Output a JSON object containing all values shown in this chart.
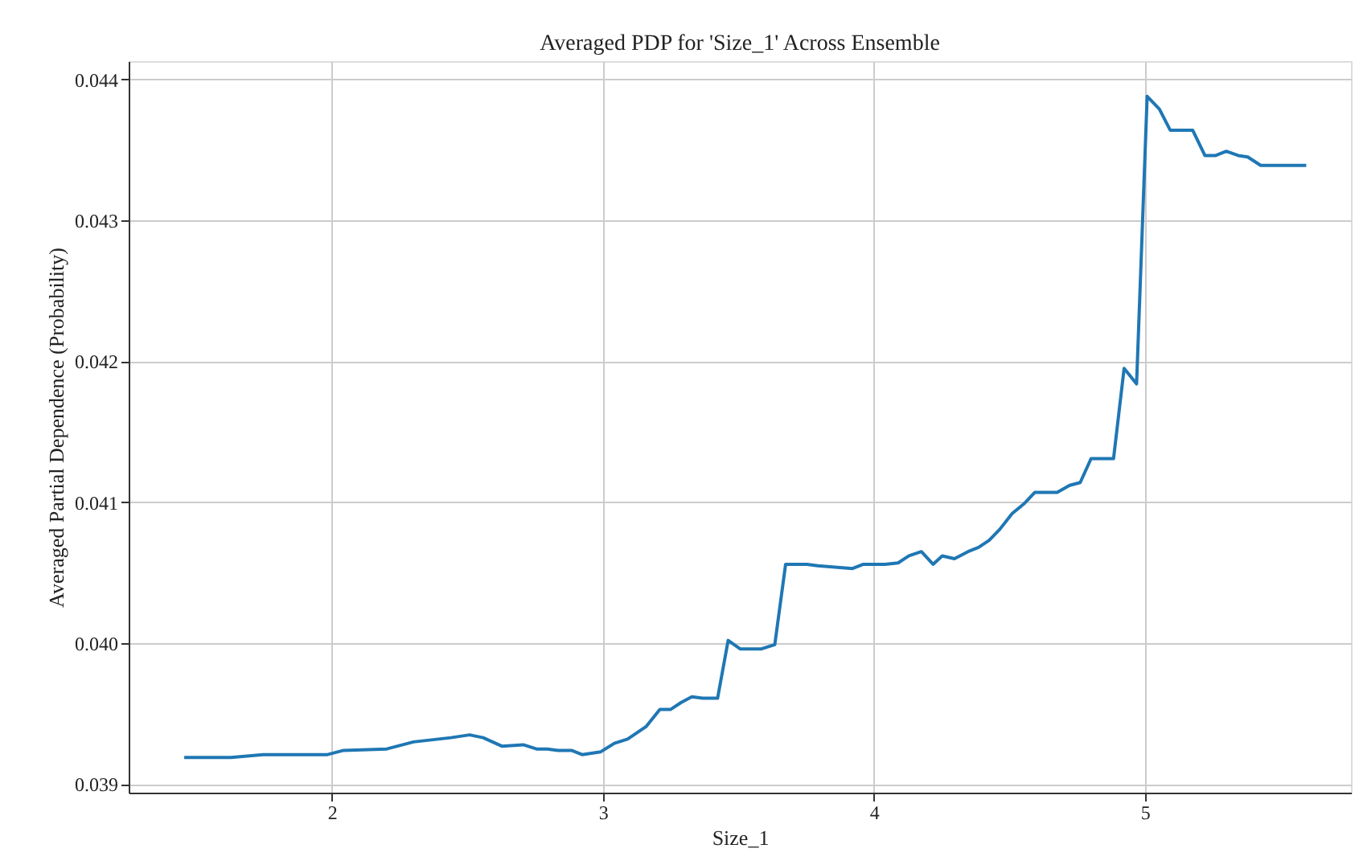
{
  "chart_data": {
    "type": "line",
    "title": "Averaged PDP for 'Size_1' Across Ensemble",
    "xlabel": "Size_1",
    "ylabel": "Averaged Partial Dependence (Probability)",
    "xlim": [
      1.25,
      5.76
    ],
    "xticks": [
      2,
      3,
      4,
      5
    ],
    "ylim": [
      0.03894,
      0.04413
    ],
    "yticks": [
      0.039,
      {
        "value": 0.04,
        "label": "0.040"
      },
      0.041,
      0.042,
      0.043,
      0.044
    ],
    "grid": true,
    "marker": "none",
    "line_style": "solid",
    "series": [
      {
        "color": "#1f77b4",
        "x": [
          1.455,
          1.627,
          1.746,
          1.845,
          1.984,
          2.043,
          2.202,
          2.301,
          2.439,
          2.508,
          2.558,
          2.627,
          2.706,
          2.755,
          2.795,
          2.834,
          2.884,
          2.923,
          2.992,
          3.042,
          3.091,
          3.16,
          3.21,
          3.249,
          3.289,
          3.328,
          3.368,
          3.423,
          3.462,
          3.506,
          3.585,
          3.634,
          3.674,
          3.753,
          3.792,
          3.921,
          3.961,
          4.04,
          4.089,
          4.129,
          4.175,
          4.218,
          4.252,
          4.297,
          4.347,
          4.386,
          4.425,
          4.465,
          4.51,
          4.554,
          4.593,
          4.676,
          4.722,
          4.761,
          4.801,
          4.884,
          4.923,
          4.969,
          5.008,
          5.053,
          5.093,
          5.176,
          5.221,
          5.261,
          5.3,
          5.344,
          5.379,
          5.427,
          5.595
        ],
        "values": [
          0.03919,
          0.03919,
          0.03921,
          0.03921,
          0.03921,
          0.03924,
          0.03925,
          0.0393,
          0.03933,
          0.03935,
          0.03933,
          0.03927,
          0.03928,
          0.03925,
          0.03925,
          0.03924,
          0.03924,
          0.03921,
          0.03923,
          0.03929,
          0.03932,
          0.03941,
          0.03953,
          0.03953,
          0.03958,
          0.03962,
          0.03961,
          0.03961,
          0.04002,
          0.03996,
          0.03996,
          0.03999,
          0.04056,
          0.04056,
          0.04055,
          0.04053,
          0.04056,
          0.04056,
          0.04057,
          0.04062,
          0.04065,
          0.04056,
          0.04062,
          0.0406,
          0.04065,
          0.04068,
          0.04073,
          0.04081,
          0.04092,
          0.04099,
          0.04107,
          0.04107,
          0.04112,
          0.04114,
          0.04131,
          0.04131,
          0.04195,
          0.04184,
          0.04388,
          0.04379,
          0.04364,
          0.04364,
          0.04346,
          0.04346,
          0.04349,
          0.04346,
          0.04345,
          0.04339,
          0.04339
        ]
      }
    ]
  }
}
